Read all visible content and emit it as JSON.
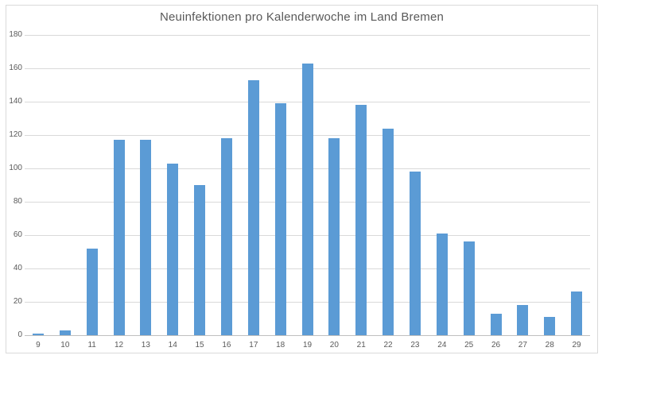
{
  "chart_data": {
    "type": "bar",
    "title": "Neuinfektionen pro Kalenderwoche im Land Bremen",
    "xlabel": "",
    "ylabel": "",
    "categories": [
      "9",
      "10",
      "11",
      "12",
      "13",
      "14",
      "15",
      "16",
      "17",
      "18",
      "19",
      "20",
      "21",
      "22",
      "23",
      "24",
      "25",
      "26",
      "27",
      "28",
      "29"
    ],
    "values": [
      1,
      3,
      52,
      117,
      117,
      103,
      90,
      118,
      153,
      139,
      163,
      118,
      138,
      124,
      98,
      61,
      56,
      13,
      18,
      11,
      26
    ],
    "ylim": [
      0,
      180
    ],
    "yticks": [
      0,
      20,
      40,
      60,
      80,
      100,
      120,
      140,
      160,
      180
    ],
    "grid": "horizontal",
    "legend": "none",
    "colors": {
      "bar": "#5b9bd5",
      "gridline": "#d9d9d9",
      "axis_line": "#bfbfbf",
      "text": "#595959",
      "frame_border": "#d9d9d9",
      "background": "#ffffff"
    }
  }
}
